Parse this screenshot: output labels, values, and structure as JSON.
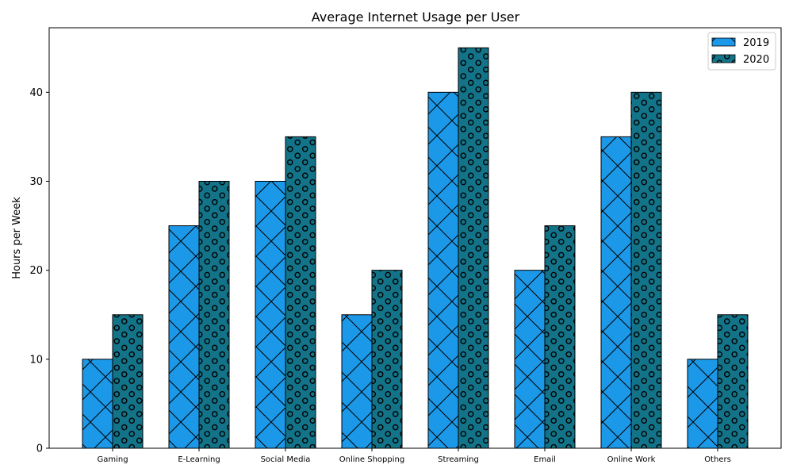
{
  "chart_data": {
    "type": "bar",
    "title": "Average Internet Usage per User",
    "xlabel": "",
    "ylabel": "Hours per Week",
    "categories": [
      "Gaming",
      "E-Learning",
      "Social Media",
      "Online Shopping",
      "Streaming",
      "Email",
      "Online Work",
      "Others"
    ],
    "series": [
      {
        "name": "2019",
        "values": [
          10,
          25,
          30,
          15,
          40,
          20,
          35,
          10
        ],
        "color": "#1c98e8",
        "hatch": "cross"
      },
      {
        "name": "2020",
        "values": [
          15,
          30,
          35,
          20,
          45,
          25,
          40,
          15
        ],
        "color": "#137489",
        "hatch": "circles"
      }
    ],
    "ylim": [
      0,
      47.25
    ],
    "yticks": [
      0,
      10,
      20,
      30,
      40
    ],
    "grid": false,
    "legend": "top-right"
  }
}
